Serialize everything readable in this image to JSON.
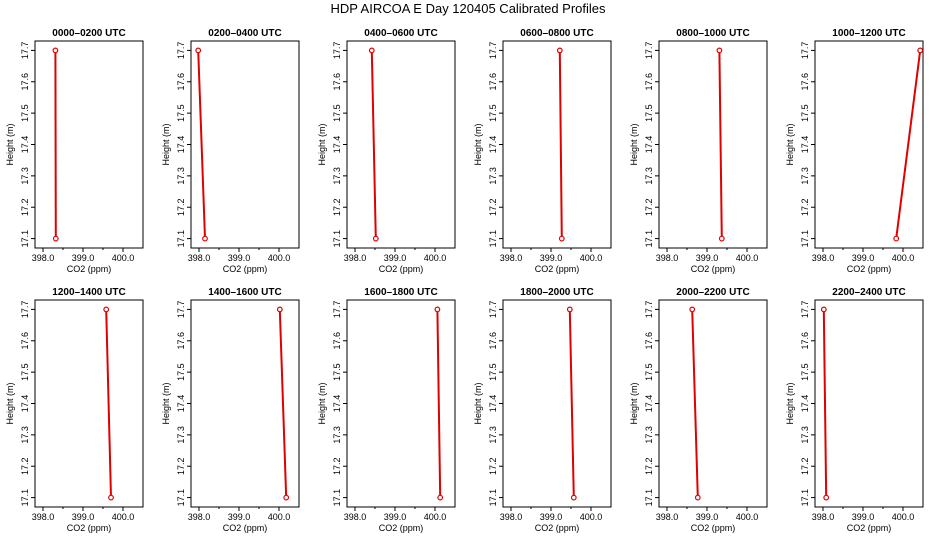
{
  "title": "HDP AIRCOA E  Day 120405  Calibrated Profiles",
  "line_color": "#e00000",
  "chart_data": [
    {
      "type": "line",
      "title": "0000–0200 UTC",
      "xlabel": "CO2 (ppm)",
      "ylabel": "Height (m)",
      "xlim": [
        397.8,
        400.5
      ],
      "ylim": [
        17.07,
        17.73
      ],
      "xticks": [
        "398.0",
        "399.0",
        "400.0"
      ],
      "yticks": [
        "17.1",
        "17.2",
        "17.3",
        "17.4",
        "17.5",
        "17.6",
        "17.7"
      ],
      "series": [
        {
          "x": [
            398.32,
            398.31
          ],
          "y": [
            17.1,
            17.7
          ]
        }
      ]
    },
    {
      "type": "line",
      "title": "0200–0400 UTC",
      "xlabel": "CO2 (ppm)",
      "ylabel": "Height (m)",
      "xlim": [
        397.8,
        400.5
      ],
      "ylim": [
        17.07,
        17.73
      ],
      "xticks": [
        "398.0",
        "399.0",
        "400.0"
      ],
      "yticks": [
        "17.1",
        "17.2",
        "17.3",
        "17.4",
        "17.5",
        "17.6",
        "17.7"
      ],
      "series": [
        {
          "x": [
            398.15,
            397.98
          ],
          "y": [
            17.1,
            17.7
          ]
        }
      ]
    },
    {
      "type": "line",
      "title": "0400–0600 UTC",
      "xlabel": "CO2 (ppm)",
      "ylabel": "Height (m)",
      "xlim": [
        397.8,
        400.5
      ],
      "ylim": [
        17.07,
        17.73
      ],
      "xticks": [
        "398.0",
        "399.0",
        "400.0"
      ],
      "yticks": [
        "17.1",
        "17.2",
        "17.3",
        "17.4",
        "17.5",
        "17.6",
        "17.7"
      ],
      "series": [
        {
          "x": [
            398.52,
            398.42
          ],
          "y": [
            17.1,
            17.7
          ]
        }
      ]
    },
    {
      "type": "line",
      "title": "0600–0800 UTC",
      "xlabel": "CO2 (ppm)",
      "ylabel": "Height (m)",
      "xlim": [
        397.8,
        400.5
      ],
      "ylim": [
        17.07,
        17.73
      ],
      "xticks": [
        "398.0",
        "399.0",
        "400.0"
      ],
      "yticks": [
        "17.1",
        "17.2",
        "17.3",
        "17.4",
        "17.5",
        "17.6",
        "17.7"
      ],
      "series": [
        {
          "x": [
            399.27,
            399.22
          ],
          "y": [
            17.1,
            17.7
          ]
        }
      ]
    },
    {
      "type": "line",
      "title": "0800–1000 UTC",
      "xlabel": "CO2 (ppm)",
      "ylabel": "Height (m)",
      "xlim": [
        397.8,
        400.5
      ],
      "ylim": [
        17.07,
        17.73
      ],
      "xticks": [
        "398.0",
        "399.0",
        "400.0"
      ],
      "yticks": [
        "17.1",
        "17.2",
        "17.3",
        "17.4",
        "17.5",
        "17.6",
        "17.7"
      ],
      "series": [
        {
          "x": [
            399.37,
            399.31
          ],
          "y": [
            17.1,
            17.7
          ]
        }
      ]
    },
    {
      "type": "line",
      "title": "1000–1200 UTC",
      "xlabel": "CO2 (ppm)",
      "ylabel": "Height (m)",
      "xlim": [
        397.8,
        400.5
      ],
      "ylim": [
        17.07,
        17.73
      ],
      "xticks": [
        "398.0",
        "399.0",
        "400.0"
      ],
      "yticks": [
        "17.1",
        "17.2",
        "17.3",
        "17.4",
        "17.5",
        "17.6",
        "17.7"
      ],
      "series": [
        {
          "x": [
            399.83,
            400.43
          ],
          "y": [
            17.1,
            17.7
          ]
        }
      ]
    },
    {
      "type": "line",
      "title": "1200–1400 UTC",
      "xlabel": "CO2 (ppm)",
      "ylabel": "Height (m)",
      "xlim": [
        397.8,
        400.5
      ],
      "ylim": [
        17.07,
        17.73
      ],
      "xticks": [
        "398.0",
        "399.0",
        "400.0"
      ],
      "yticks": [
        "17.1",
        "17.2",
        "17.3",
        "17.4",
        "17.5",
        "17.6",
        "17.7"
      ],
      "series": [
        {
          "x": [
            399.7,
            399.58
          ],
          "y": [
            17.1,
            17.7
          ]
        }
      ]
    },
    {
      "type": "line",
      "title": "1400–1600 UTC",
      "xlabel": "CO2 (ppm)",
      "ylabel": "Height (m)",
      "xlim": [
        397.8,
        400.5
      ],
      "ylim": [
        17.07,
        17.73
      ],
      "xticks": [
        "398.0",
        "399.0",
        "400.0"
      ],
      "yticks": [
        "17.1",
        "17.2",
        "17.3",
        "17.4",
        "17.5",
        "17.6",
        "17.7"
      ],
      "series": [
        {
          "x": [
            400.18,
            400.02
          ],
          "y": [
            17.1,
            17.7
          ]
        }
      ]
    },
    {
      "type": "line",
      "title": "1600–1800 UTC",
      "xlabel": "CO2 (ppm)",
      "ylabel": "Height (m)",
      "xlim": [
        397.8,
        400.5
      ],
      "ylim": [
        17.07,
        17.73
      ],
      "xticks": [
        "398.0",
        "399.0",
        "400.0"
      ],
      "yticks": [
        "17.1",
        "17.2",
        "17.3",
        "17.4",
        "17.5",
        "17.6",
        "17.7"
      ],
      "series": [
        {
          "x": [
            400.13,
            400.06
          ],
          "y": [
            17.1,
            17.7
          ]
        }
      ]
    },
    {
      "type": "line",
      "title": "1800–2000 UTC",
      "xlabel": "CO2 (ppm)",
      "ylabel": "Height (m)",
      "xlim": [
        397.8,
        400.5
      ],
      "ylim": [
        17.07,
        17.73
      ],
      "xticks": [
        "398.0",
        "399.0",
        "400.0"
      ],
      "yticks": [
        "17.1",
        "17.2",
        "17.3",
        "17.4",
        "17.5",
        "17.6",
        "17.7"
      ],
      "series": [
        {
          "x": [
            399.57,
            399.47
          ],
          "y": [
            17.1,
            17.7
          ]
        }
      ]
    },
    {
      "type": "line",
      "title": "2000–2200 UTC",
      "xlabel": "CO2 (ppm)",
      "ylabel": "Height (m)",
      "xlim": [
        397.8,
        400.5
      ],
      "ylim": [
        17.07,
        17.73
      ],
      "xticks": [
        "398.0",
        "399.0",
        "400.0"
      ],
      "yticks": [
        "17.1",
        "17.2",
        "17.3",
        "17.4",
        "17.5",
        "17.6",
        "17.7"
      ],
      "series": [
        {
          "x": [
            398.77,
            398.63
          ],
          "y": [
            17.1,
            17.7
          ]
        }
      ]
    },
    {
      "type": "line",
      "title": "2200–2400 UTC",
      "xlabel": "CO2 (ppm)",
      "ylabel": "Height (m)",
      "xlim": [
        397.8,
        400.5
      ],
      "ylim": [
        17.07,
        17.73
      ],
      "xticks": [
        "398.0",
        "399.0",
        "400.0"
      ],
      "yticks": [
        "17.1",
        "17.2",
        "17.3",
        "17.4",
        "17.5",
        "17.6",
        "17.7"
      ],
      "series": [
        {
          "x": [
            398.08,
            398.02
          ],
          "y": [
            17.1,
            17.7
          ]
        }
      ]
    }
  ]
}
